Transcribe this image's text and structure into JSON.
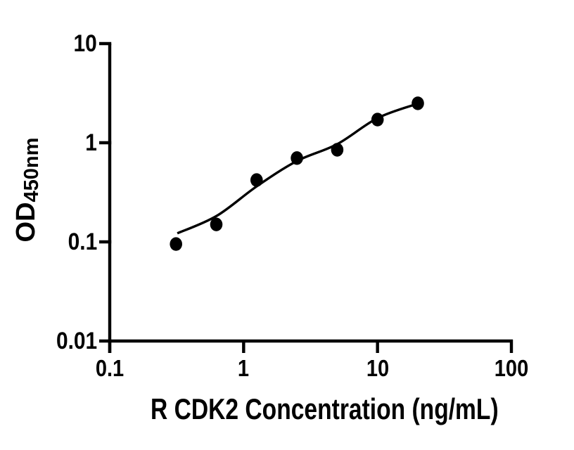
{
  "figure": {
    "description": "ELISA standard curve, log-log scatter plot with fitted curve",
    "background_color": "#ffffff",
    "ink_color": "#000000"
  },
  "chart_data": {
    "type": "scatter",
    "title": "",
    "xlabel": "R CDK2 Concentration (ng/mL)",
    "ylabel_main": "OD",
    "ylabel_sub": "450nm",
    "x_scale": "log10",
    "y_scale": "log10",
    "xlim": [
      0.1,
      100
    ],
    "ylim": [
      0.01,
      10
    ],
    "grid": false,
    "legend": "none",
    "x_ticks": [
      {
        "v": 0.1,
        "label": "0.1"
      },
      {
        "v": 1,
        "label": "1"
      },
      {
        "v": 10,
        "label": "10"
      },
      {
        "v": 100,
        "label": "100"
      }
    ],
    "y_ticks": [
      {
        "v": 10,
        "label": "10"
      },
      {
        "v": 1,
        "label": "1"
      },
      {
        "v": 0.1,
        "label": "0.1"
      },
      {
        "v": 0.01,
        "label": "0.01"
      }
    ],
    "marker": {
      "shape": "filled-circle",
      "color": "#000000"
    },
    "line_color": "#000000",
    "series": [
      {
        "name": "standard data points",
        "type": "scatter",
        "x": [
          0.3125,
          0.625,
          1.25,
          2.5,
          5,
          10,
          20
        ],
        "y": [
          0.095,
          0.15,
          0.42,
          0.7,
          0.85,
          1.71,
          2.5
        ]
      },
      {
        "name": "fitted standard curve",
        "type": "line",
        "x": [
          0.32,
          0.63,
          1.25,
          2.5,
          5,
          10,
          20
        ],
        "y": [
          0.122,
          0.183,
          0.363,
          0.654,
          0.968,
          1.77,
          2.48
        ]
      }
    ]
  }
}
